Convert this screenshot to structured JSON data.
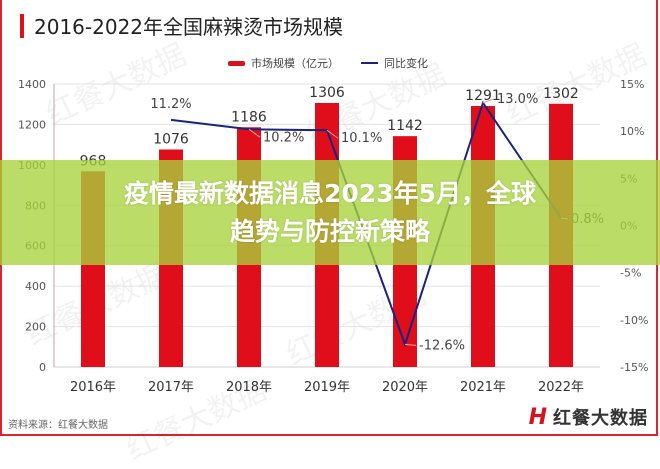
{
  "header": {
    "title": "2016-2022年全国麻辣烫市场规模"
  },
  "legend": {
    "bar_label": "市场规模（亿元）",
    "line_label": "同比变化"
  },
  "overlay": {
    "headline_line1": "疫情最新数据消息2023年5月，全球",
    "headline_line2": "趋势与防控新策略"
  },
  "footer": {
    "source": "资料来源：红餐大数据",
    "brand_logo": "H",
    "brand_name": "红餐大数据"
  },
  "watermark": "红餐大数据",
  "colors": {
    "bar": "#e00d1a",
    "line": "#1a237e",
    "banner": "#a8d43c",
    "frame": "#d9262c"
  },
  "chart_data": {
    "type": "bar+line",
    "title": "2016-2022年全国麻辣烫市场规模",
    "categories": [
      "2016年",
      "2017年",
      "2018年",
      "2019年",
      "2020年",
      "2021年",
      "2022年"
    ],
    "series": [
      {
        "name": "市场规模（亿元）",
        "type": "bar",
        "axis": "left",
        "values": [
          968,
          1076,
          1186,
          1306,
          1142,
          1291,
          1302
        ]
      },
      {
        "name": "同比变化",
        "type": "line",
        "axis": "right",
        "values": [
          null,
          11.2,
          10.2,
          10.1,
          -12.6,
          13.0,
          0.8
        ],
        "labels": [
          "",
          "11.2%",
          "10.2%",
          "10.1%",
          "-12.6%",
          "13.0%",
          "0.8%"
        ]
      }
    ],
    "y_left": {
      "min": 0,
      "max": 1400,
      "ticks": [
        0,
        200,
        400,
        600,
        800,
        1000,
        1200,
        1400
      ]
    },
    "y_right": {
      "min": -15,
      "max": 15,
      "ticks": [
        "-15%",
        "-10%",
        "-5%",
        "0%",
        "5%",
        "10%",
        "15%"
      ]
    },
    "xlabel": "",
    "ylabel": "",
    "grid": true,
    "legend_position": "top-right",
    "source": "资料来源：红餐大数据"
  }
}
